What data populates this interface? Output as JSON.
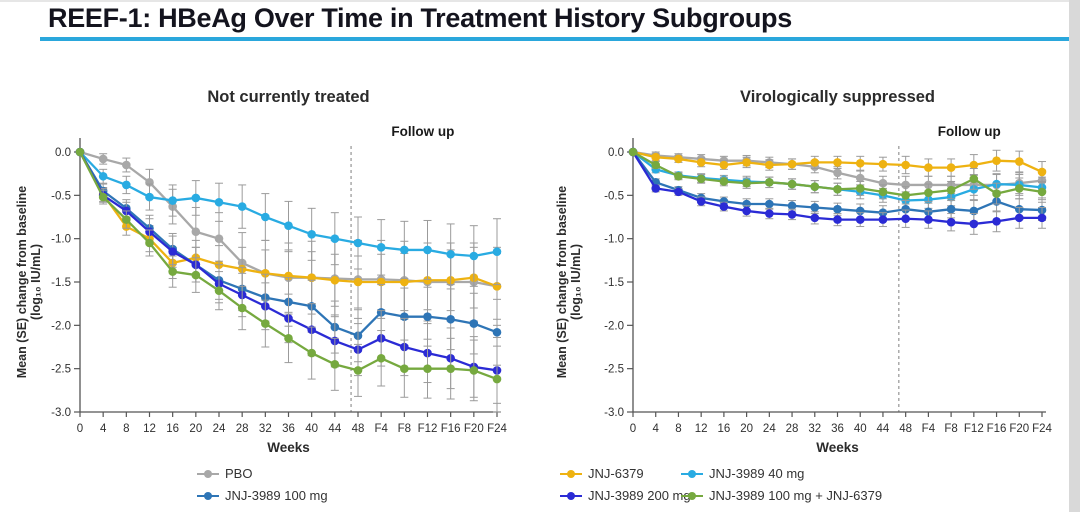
{
  "header": {
    "title": "REEF-1: HBeAg Over Time in Treatment History Subgroups",
    "accent_color": "#2aa7dc"
  },
  "axis": {
    "x_ticks": [
      "0",
      "4",
      "8",
      "12",
      "16",
      "20",
      "24",
      "28",
      "32",
      "36",
      "40",
      "44",
      "48",
      "F4",
      "F8",
      "F12",
      "F16",
      "F20",
      "F24"
    ],
    "x_label": "Weeks",
    "y_ticks": [
      "0.0",
      "-0.5",
      "-1.0",
      "-1.5",
      "-2.0",
      "-2.5",
      "-3.0"
    ],
    "y_min": -3.0,
    "y_max": 0.0,
    "y_label_line1": "Mean (SE) change from baseline",
    "y_label_line2": "(log₁₀ IU/mL)",
    "followup_label": "Follow up",
    "followup_divider_week": "48"
  },
  "legend": {
    "items": [
      {
        "id": "pbo",
        "label": "PBO",
        "color": "#a8a8a8"
      },
      {
        "id": "jnj6379",
        "label": "JNJ-6379",
        "color": "#eeb211"
      },
      {
        "id": "jnj3989_40",
        "label": "JNJ-3989 40 mg",
        "color": "#29abe2"
      },
      {
        "id": "jnj3989_100",
        "label": "JNJ-3989 100 mg",
        "color": "#2e75b6"
      },
      {
        "id": "jnj3989_200",
        "label": "JNJ-3989 200 mg",
        "color": "#2b2bd5"
      },
      {
        "id": "jnj3989_100_6379",
        "label": "JNJ-3989 100 mg + JNJ-6379",
        "color": "#76a93f"
      }
    ]
  },
  "chart_data": [
    {
      "type": "line",
      "title": "Not currently treated",
      "x_categories": [
        "0",
        "4",
        "8",
        "12",
        "16",
        "20",
        "24",
        "28",
        "32",
        "36",
        "40",
        "44",
        "48",
        "F4",
        "F8",
        "F12",
        "F16",
        "F20",
        "F24"
      ],
      "ylabel": "Mean (SE) change from baseline (log₁₀ IU/mL)",
      "xlabel": "Weeks",
      "ylim": [
        -3.0,
        0.0
      ],
      "grid": false,
      "se_default": [
        0,
        0.08,
        0.1,
        0.15,
        0.18,
        0.2,
        0.22,
        0.25,
        0.27,
        0.28,
        0.3,
        0.3,
        0.3,
        0.32,
        0.33,
        0.34,
        0.35,
        0.35,
        0.38
      ],
      "series": [
        {
          "id": "pbo",
          "name": "PBO",
          "values": [
            0,
            -0.08,
            -0.15,
            -0.35,
            -0.63,
            -0.92,
            -1.0,
            -1.28,
            -1.4,
            -1.45,
            -1.45,
            -1.46,
            -1.47,
            -1.47,
            -1.48,
            -1.5,
            -1.5,
            -1.5,
            -1.55
          ],
          "se": [
            0,
            0.06,
            0.08,
            0.15,
            0.2,
            0.28,
            0.3,
            0.35,
            0.38,
            0.4,
            0.42,
            0.44,
            0.45,
            0.45,
            0.45,
            0.45,
            0.45,
            0.45,
            0.45
          ]
        },
        {
          "id": "jnj6379",
          "name": "JNJ-6379",
          "values": [
            0,
            -0.49,
            -0.86,
            -1.0,
            -1.28,
            -1.22,
            -1.3,
            -1.35,
            -1.4,
            -1.43,
            -1.45,
            -1.48,
            -1.5,
            -1.5,
            -1.5,
            -1.48,
            -1.48,
            -1.45,
            -1.55
          ]
        },
        {
          "id": "jnj3989_40",
          "name": "JNJ-3989 40 mg",
          "values": [
            0,
            -0.28,
            -0.38,
            -0.52,
            -0.56,
            -0.53,
            -0.58,
            -0.63,
            -0.75,
            -0.85,
            -0.95,
            -1.0,
            -1.05,
            -1.1,
            -1.13,
            -1.13,
            -1.18,
            -1.2,
            -1.15
          ]
        },
        {
          "id": "jnj3989_100",
          "name": "JNJ-3989 100 mg",
          "values": [
            0,
            -0.45,
            -0.65,
            -0.88,
            -1.12,
            -1.3,
            -1.48,
            -1.58,
            -1.68,
            -1.73,
            -1.78,
            -2.02,
            -2.12,
            -1.85,
            -1.9,
            -1.9,
            -1.93,
            -1.98,
            -2.08
          ]
        },
        {
          "id": "jnj3989_200",
          "name": "JNJ-3989 200 mg",
          "values": [
            0,
            -0.5,
            -0.68,
            -0.92,
            -1.15,
            -1.3,
            -1.52,
            -1.65,
            -1.78,
            -1.92,
            -2.05,
            -2.18,
            -2.28,
            -2.15,
            -2.25,
            -2.32,
            -2.38,
            -2.48,
            -2.52
          ]
        },
        {
          "id": "jnj3989_100_6379",
          "name": "JNJ-3989 100 mg + JNJ-6379",
          "values": [
            0,
            -0.52,
            -0.78,
            -1.05,
            -1.38,
            -1.42,
            -1.6,
            -1.8,
            -1.98,
            -2.15,
            -2.32,
            -2.45,
            -2.52,
            -2.38,
            -2.5,
            -2.5,
            -2.5,
            -2.52,
            -2.62
          ]
        }
      ]
    },
    {
      "type": "line",
      "title": "Virologically suppressed",
      "x_categories": [
        "0",
        "4",
        "8",
        "12",
        "16",
        "20",
        "24",
        "28",
        "32",
        "36",
        "40",
        "44",
        "48",
        "F4",
        "F8",
        "F12",
        "F16",
        "F20",
        "F24"
      ],
      "ylabel": "Mean (SE) change from baseline (log₁₀ IU/mL)",
      "xlabel": "Weeks",
      "ylim": [
        -3.0,
        0.0
      ],
      "grid": false,
      "se_default": [
        0,
        0.04,
        0.04,
        0.05,
        0.05,
        0.06,
        0.06,
        0.06,
        0.07,
        0.07,
        0.08,
        0.08,
        0.1,
        0.1,
        0.1,
        0.12,
        0.12,
        0.12,
        0.12
      ],
      "series": [
        {
          "id": "pbo",
          "name": "PBO",
          "values": [
            0,
            -0.04,
            -0.06,
            -0.08,
            -0.1,
            -0.1,
            -0.12,
            -0.14,
            -0.17,
            -0.24,
            -0.3,
            -0.36,
            -0.38,
            -0.38,
            -0.38,
            -0.38,
            -0.38,
            -0.36,
            -0.33
          ]
        },
        {
          "id": "jnj6379",
          "name": "JNJ-6379",
          "values": [
            0,
            -0.06,
            -0.08,
            -0.12,
            -0.15,
            -0.12,
            -0.15,
            -0.14,
            -0.12,
            -0.12,
            -0.13,
            -0.14,
            -0.15,
            -0.18,
            -0.18,
            -0.15,
            -0.1,
            -0.11,
            -0.23
          ]
        },
        {
          "id": "jnj3989_40",
          "name": "JNJ-3989 40 mg",
          "values": [
            0,
            -0.2,
            -0.27,
            -0.3,
            -0.32,
            -0.34,
            -0.35,
            -0.37,
            -0.4,
            -0.43,
            -0.46,
            -0.5,
            -0.56,
            -0.55,
            -0.52,
            -0.43,
            -0.37,
            -0.38,
            -0.41
          ]
        },
        {
          "id": "jnj3989_100",
          "name": "JNJ-3989 100 mg",
          "values": [
            0,
            -0.35,
            -0.44,
            -0.53,
            -0.57,
            -0.6,
            -0.6,
            -0.62,
            -0.64,
            -0.66,
            -0.68,
            -0.7,
            -0.66,
            -0.69,
            -0.66,
            -0.68,
            -0.57,
            -0.66,
            -0.67
          ]
        },
        {
          "id": "jnj3989_200",
          "name": "JNJ-3989 200 mg",
          "values": [
            0,
            -0.42,
            -0.46,
            -0.57,
            -0.63,
            -0.68,
            -0.71,
            -0.72,
            -0.76,
            -0.78,
            -0.78,
            -0.78,
            -0.77,
            -0.78,
            -0.81,
            -0.83,
            -0.8,
            -0.76,
            -0.76
          ]
        },
        {
          "id": "jnj3989_100_6379",
          "name": "JNJ-3989 100 mg + JNJ-6379",
          "values": [
            0,
            -0.15,
            -0.28,
            -0.31,
            -0.34,
            -0.36,
            -0.35,
            -0.37,
            -0.4,
            -0.43,
            -0.42,
            -0.46,
            -0.5,
            -0.47,
            -0.44,
            -0.31,
            -0.48,
            -0.42,
            -0.46
          ]
        }
      ]
    }
  ]
}
